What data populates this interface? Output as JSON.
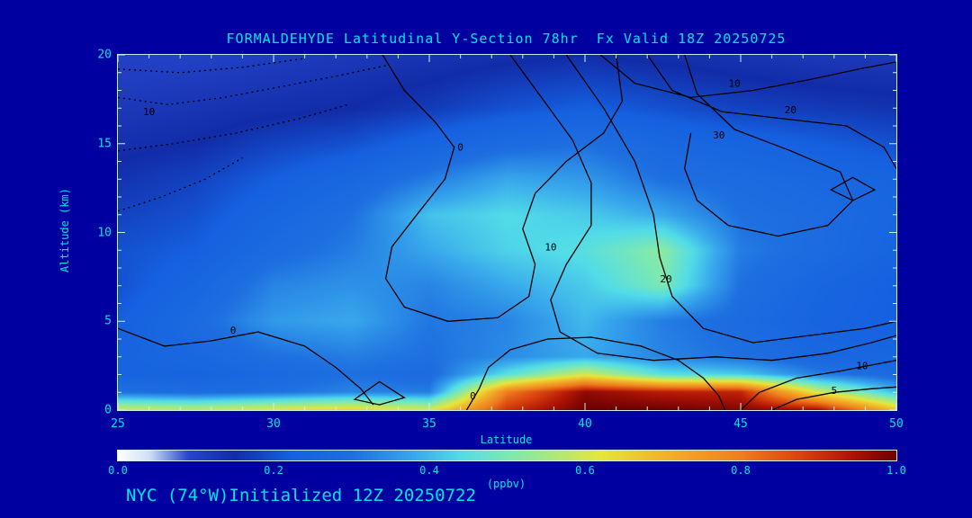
{
  "background": "#0000a0",
  "text_color": "#00e6e6",
  "title": "FORMALDEHYDE Latitudinal Y-Section 78hr  Fx Valid 18Z 20250725",
  "footer": "NYC (74°W)Initialized 12Z 20250722",
  "chart_data": {
    "type": "heatmap",
    "title": "FORMALDEHYDE Latitudinal Y-Section 78hr  Fx Valid 18Z 20250725",
    "xlabel": "Latitude",
    "ylabel": "Altitude (km)",
    "x_range": [
      25,
      50
    ],
    "y_range": [
      0,
      20
    ],
    "x_ticks": [
      25,
      30,
      35,
      40,
      45,
      50
    ],
    "x_tick_labels": [
      "25",
      "30",
      "35",
      "40",
      "45",
      "50"
    ],
    "x_minor_step": 1,
    "y_ticks": [
      0,
      5,
      10,
      15,
      20
    ],
    "y_tick_labels": [
      "0",
      "5",
      "10",
      "15",
      "20"
    ],
    "y_minor_step": 1,
    "lat": [
      25,
      27.5,
      30,
      32.5,
      35,
      37.5,
      40,
      42.5,
      45,
      47.5,
      50
    ],
    "alt": [
      0,
      1,
      2,
      3,
      5,
      7,
      9,
      11,
      13,
      15,
      17,
      20
    ],
    "values": [
      [
        0.6,
        0.58,
        0.62,
        0.65,
        0.6,
        0.9,
        1.0,
        1.0,
        0.98,
        0.95,
        0.68
      ],
      [
        0.3,
        0.28,
        0.3,
        0.33,
        0.32,
        0.8,
        0.97,
        0.93,
        0.92,
        0.6,
        0.4
      ],
      [
        0.24,
        0.24,
        0.27,
        0.3,
        0.28,
        0.45,
        0.6,
        0.45,
        0.42,
        0.32,
        0.27
      ],
      [
        0.24,
        0.26,
        0.3,
        0.32,
        0.3,
        0.34,
        0.38,
        0.33,
        0.3,
        0.26,
        0.25
      ],
      [
        0.22,
        0.28,
        0.36,
        0.38,
        0.31,
        0.33,
        0.4,
        0.32,
        0.28,
        0.24,
        0.22
      ],
      [
        0.2,
        0.25,
        0.33,
        0.35,
        0.33,
        0.38,
        0.42,
        0.5,
        0.3,
        0.25,
        0.22
      ],
      [
        0.2,
        0.22,
        0.28,
        0.32,
        0.38,
        0.43,
        0.45,
        0.52,
        0.32,
        0.28,
        0.24
      ],
      [
        0.18,
        0.2,
        0.25,
        0.3,
        0.41,
        0.44,
        0.42,
        0.38,
        0.3,
        0.28,
        0.25
      ],
      [
        0.16,
        0.18,
        0.22,
        0.26,
        0.32,
        0.38,
        0.36,
        0.3,
        0.28,
        0.26,
        0.24
      ],
      [
        0.14,
        0.15,
        0.18,
        0.2,
        0.24,
        0.28,
        0.3,
        0.26,
        0.24,
        0.22,
        0.2
      ],
      [
        0.12,
        0.13,
        0.14,
        0.15,
        0.17,
        0.2,
        0.22,
        0.2,
        0.18,
        0.17,
        0.16
      ],
      [
        0.1,
        0.1,
        0.11,
        0.12,
        0.13,
        0.14,
        0.15,
        0.14,
        0.13,
        0.12,
        0.12
      ]
    ],
    "colormap": [
      [
        0.0,
        "#ffffff"
      ],
      [
        0.04,
        "#cfe0f4"
      ],
      [
        0.09,
        "#2646cc"
      ],
      [
        0.15,
        "#122ca8"
      ],
      [
        0.22,
        "#1560e0"
      ],
      [
        0.3,
        "#1e6fe0"
      ],
      [
        0.38,
        "#38a8ec"
      ],
      [
        0.44,
        "#52dce8"
      ],
      [
        0.5,
        "#7ce8b4"
      ],
      [
        0.56,
        "#ace87a"
      ],
      [
        0.62,
        "#e6e63c"
      ],
      [
        0.7,
        "#f2b32a"
      ],
      [
        0.8,
        "#ee7f1e"
      ],
      [
        0.88,
        "#d8420e"
      ],
      [
        0.94,
        "#b01606"
      ],
      [
        1.0,
        "#6e0000"
      ]
    ],
    "colorbar": {
      "min": 0.0,
      "max": 1.0,
      "ticks": [
        "0.0",
        "0.2",
        "0.4",
        "0.6",
        "0.8",
        "1.0"
      ],
      "label": "(ppbv)"
    },
    "contours": [
      {
        "label": "0",
        "style": "solid",
        "closed": false,
        "label_at": [
          28.7,
          4.3
        ],
        "points": [
          [
            25,
            4.6
          ],
          [
            26.5,
            3.6
          ],
          [
            28,
            3.9
          ],
          [
            29.5,
            4.4
          ],
          [
            31,
            3.6
          ],
          [
            32,
            2.4
          ],
          [
            32.8,
            1.2
          ],
          [
            33.2,
            0.3
          ]
        ]
      },
      {
        "label": "",
        "style": "solid",
        "closed": true,
        "label_at": null,
        "points": [
          [
            32.6,
            0.6
          ],
          [
            33.4,
            1.6
          ],
          [
            34.2,
            0.7
          ],
          [
            33.4,
            0.3
          ]
        ]
      },
      {
        "label": "0",
        "style": "solid",
        "closed": false,
        "label_at": [
          36.4,
          0.6
        ],
        "points": [
          [
            36.2,
            0
          ],
          [
            36.6,
            1.2
          ],
          [
            36.9,
            2.4
          ],
          [
            37.6,
            3.4
          ],
          [
            38.8,
            4.0
          ],
          [
            40.2,
            4.1
          ],
          [
            41.8,
            3.6
          ],
          [
            43.0,
            2.8
          ],
          [
            43.8,
            1.8
          ],
          [
            44.3,
            0.8
          ],
          [
            44.5,
            0
          ]
        ]
      },
      {
        "label": "0",
        "style": "solid",
        "closed": false,
        "label_at": [
          36.0,
          14.6
        ],
        "points": [
          [
            33.5,
            20
          ],
          [
            34.2,
            18
          ],
          [
            35.2,
            16.2
          ],
          [
            35.8,
            14.8
          ],
          [
            35.5,
            13
          ],
          [
            34.6,
            11
          ],
          [
            33.8,
            9.2
          ],
          [
            33.6,
            7.4
          ],
          [
            34.2,
            5.8
          ],
          [
            35.6,
            5.0
          ],
          [
            37.2,
            5.2
          ],
          [
            38.2,
            6.4
          ],
          [
            38.4,
            8.2
          ],
          [
            38.0,
            10.2
          ],
          [
            38.4,
            12.2
          ],
          [
            39.4,
            14
          ],
          [
            40.6,
            15.6
          ],
          [
            41.2,
            17.4
          ],
          [
            41.0,
            20
          ]
        ]
      },
      {
        "label": "10",
        "style": "solid",
        "closed": false,
        "label_at": [
          38.9,
          9.0
        ],
        "points": [
          [
            37.6,
            20
          ],
          [
            38.6,
            17.6
          ],
          [
            39.6,
            15.2
          ],
          [
            40.2,
            12.8
          ],
          [
            40.2,
            10.4
          ],
          [
            39.4,
            8.2
          ],
          [
            38.9,
            6.2
          ],
          [
            39.2,
            4.4
          ],
          [
            40.4,
            3.2
          ],
          [
            42.2,
            2.8
          ],
          [
            44.2,
            3.0
          ],
          [
            46.0,
            2.8
          ],
          [
            47.8,
            3.2
          ],
          [
            49.2,
            3.8
          ],
          [
            50,
            4.2
          ]
        ]
      },
      {
        "label": "20",
        "style": "solid",
        "closed": false,
        "label_at": [
          42.6,
          7.2
        ],
        "points": [
          [
            39.4,
            20
          ],
          [
            40.6,
            17
          ],
          [
            41.6,
            14
          ],
          [
            42.2,
            11
          ],
          [
            42.4,
            8.6
          ],
          [
            42.8,
            6.4
          ],
          [
            43.8,
            4.6
          ],
          [
            45.4,
            3.8
          ],
          [
            47.2,
            4.2
          ],
          [
            49.0,
            4.6
          ],
          [
            50,
            5.0
          ]
        ]
      },
      {
        "label": "10",
        "style": "solid",
        "closed": false,
        "label_at": [
          44.8,
          18.2
        ],
        "points": [
          [
            40.5,
            20
          ],
          [
            41.6,
            18.4
          ],
          [
            43.4,
            17.6
          ],
          [
            45.4,
            18.0
          ],
          [
            47.2,
            18.6
          ],
          [
            48.8,
            19.2
          ],
          [
            50,
            19.6
          ]
        ]
      },
      {
        "label": "20",
        "style": "solid",
        "closed": false,
        "label_at": [
          46.6,
          16.7
        ],
        "points": [
          [
            42.0,
            20
          ],
          [
            42.8,
            18.0
          ],
          [
            44.4,
            16.8
          ],
          [
            46.4,
            16.4
          ],
          [
            48.4,
            16.0
          ],
          [
            49.6,
            14.8
          ],
          [
            50,
            13.6
          ]
        ]
      },
      {
        "label": "30",
        "style": "solid",
        "closed": false,
        "label_at": [
          44.3,
          15.3
        ],
        "points": [
          [
            43.2,
            20
          ],
          [
            43.6,
            17.8
          ],
          [
            44.8,
            15.8
          ],
          [
            46.6,
            14.6
          ],
          [
            48.2,
            13.4
          ],
          [
            48.6,
            11.8
          ],
          [
            47.8,
            10.4
          ],
          [
            46.2,
            9.8
          ],
          [
            44.6,
            10.4
          ],
          [
            43.6,
            11.8
          ],
          [
            43.2,
            13.6
          ],
          [
            43.4,
            15.6
          ]
        ]
      },
      {
        "label": "",
        "style": "solid",
        "closed": true,
        "label_at": null,
        "points": [
          [
            47.9,
            12.4
          ],
          [
            48.6,
            13.1
          ],
          [
            49.3,
            12.4
          ],
          [
            48.6,
            11.8
          ]
        ]
      },
      {
        "label": "10",
        "style": "solid",
        "closed": false,
        "label_at": [
          48.9,
          2.3
        ],
        "points": [
          [
            45.0,
            0
          ],
          [
            45.6,
            1.0
          ],
          [
            46.8,
            1.8
          ],
          [
            48.2,
            2.2
          ],
          [
            49.4,
            2.6
          ],
          [
            50,
            2.8
          ]
        ]
      },
      {
        "label": "5",
        "style": "solid",
        "closed": false,
        "label_at": [
          48.0,
          0.9
        ],
        "points": [
          [
            46.0,
            0
          ],
          [
            46.8,
            0.6
          ],
          [
            48.0,
            1.0
          ],
          [
            49.2,
            1.2
          ],
          [
            50,
            1.3
          ]
        ]
      },
      {
        "label": "10",
        "style": "dotted",
        "closed": false,
        "label_at": [
          26.0,
          16.6
        ],
        "points": [
          [
            25,
            17.6
          ],
          [
            26.6,
            17.2
          ],
          [
            28.4,
            17.6
          ],
          [
            30.2,
            18.2
          ],
          [
            32.0,
            18.8
          ],
          [
            33.6,
            19.4
          ]
        ]
      },
      {
        "label": "",
        "style": "dotted",
        "closed": false,
        "label_at": null,
        "points": [
          [
            25,
            14.6
          ],
          [
            26.8,
            15.0
          ],
          [
            28.8,
            15.6
          ],
          [
            30.8,
            16.4
          ],
          [
            32.4,
            17.2
          ]
        ]
      },
      {
        "label": "",
        "style": "dotted",
        "closed": false,
        "label_at": null,
        "points": [
          [
            25,
            11.2
          ],
          [
            26.4,
            12.0
          ],
          [
            27.8,
            13.0
          ],
          [
            29.0,
            14.2
          ]
        ]
      },
      {
        "label": "",
        "style": "dotted",
        "closed": false,
        "label_at": null,
        "points": [
          [
            25,
            19.2
          ],
          [
            27,
            19.0
          ],
          [
            29,
            19.3
          ],
          [
            31,
            19.8
          ]
        ]
      }
    ]
  }
}
